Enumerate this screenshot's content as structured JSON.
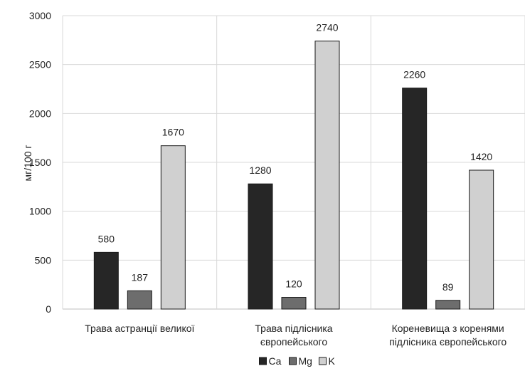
{
  "chart_data": {
    "type": "bar",
    "ylabel": "мг/100 г",
    "ylim": [
      0,
      3000
    ],
    "yticks": [
      0,
      500,
      1000,
      1500,
      2000,
      2500,
      3000
    ],
    "grid": true,
    "legend_position": "bottom",
    "categories": [
      [
        "Трава астранції великої"
      ],
      [
        "Трава підлісника",
        "європейського"
      ],
      [
        "Кореневища з коренями",
        "підлісника європейського"
      ]
    ],
    "series": [
      {
        "name": "Ca",
        "color": "#262626",
        "values": [
          580,
          1280,
          2260
        ]
      },
      {
        "name": "Mg",
        "color": "#6d6d6d",
        "values": [
          187,
          120,
          89
        ]
      },
      {
        "name": "K",
        "color": "#d0d0d0",
        "values": [
          1670,
          2740,
          1420
        ]
      }
    ]
  }
}
